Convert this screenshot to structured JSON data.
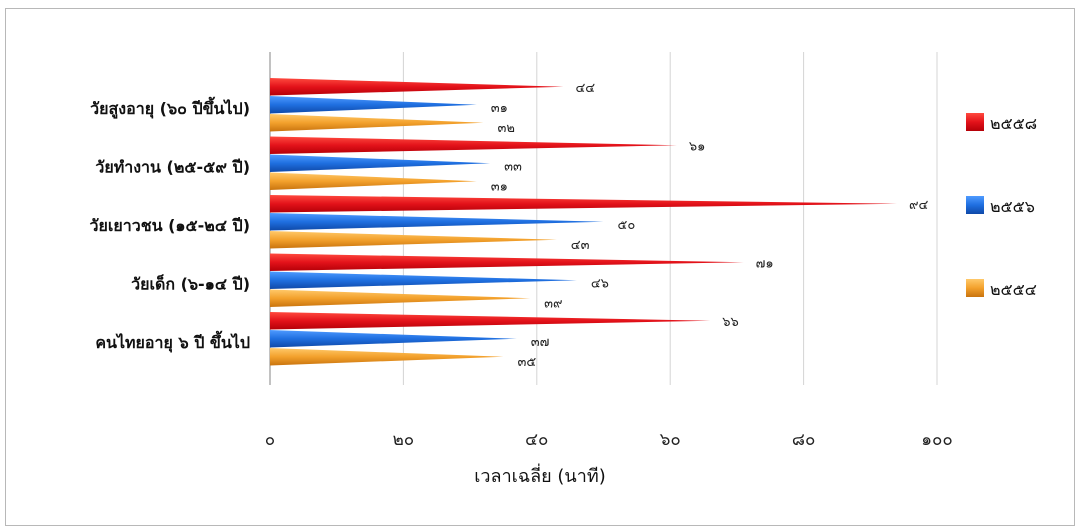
{
  "chart_data": {
    "type": "bar",
    "orientation": "horizontal",
    "categories": [
      "วัยสูงอายุ (๖๐ ปีขึ้นไป)",
      "วัยทำงาน (๒๕-๕๙ ปี)",
      "วัยเยาวชน (๑๕-๒๔ ปี)",
      "วัยเด็ก (๖-๑๔ ปี)",
      "คนไทยอายุ ๖ ปี ขึ้นไป"
    ],
    "series": [
      {
        "name": "๒๕๕๘",
        "color": "#e8121b",
        "values": [
          44,
          61,
          94,
          71,
          66
        ],
        "labels": [
          "๔๔",
          "๖๑",
          "๙๔",
          "๗๑",
          "๖๖"
        ]
      },
      {
        "name": "๒๕๕๖",
        "color": "#1f6fe0",
        "values": [
          31,
          33,
          50,
          46,
          37
        ],
        "labels": [
          "๓๑",
          "๓๓",
          "๕๐",
          "๔๖",
          "๓๗"
        ]
      },
      {
        "name": "๒๕๕๔",
        "color": "#f3a12c",
        "values": [
          32,
          31,
          43,
          39,
          35
        ],
        "labels": [
          "๓๒",
          "๓๑",
          "๔๓",
          "๓๙",
          "๓๕"
        ]
      }
    ],
    "xlim": [
      0,
      100
    ],
    "xticks": [
      0,
      20,
      40,
      60,
      80,
      100
    ],
    "xtick_labels": [
      "๐",
      "๒๐",
      "๔๐",
      "๖๐",
      "๘๐",
      "๑๐๐"
    ],
    "xlabel": "เวลาเฉลี่ย (นาที)",
    "grid": true,
    "legend_position": "right"
  }
}
